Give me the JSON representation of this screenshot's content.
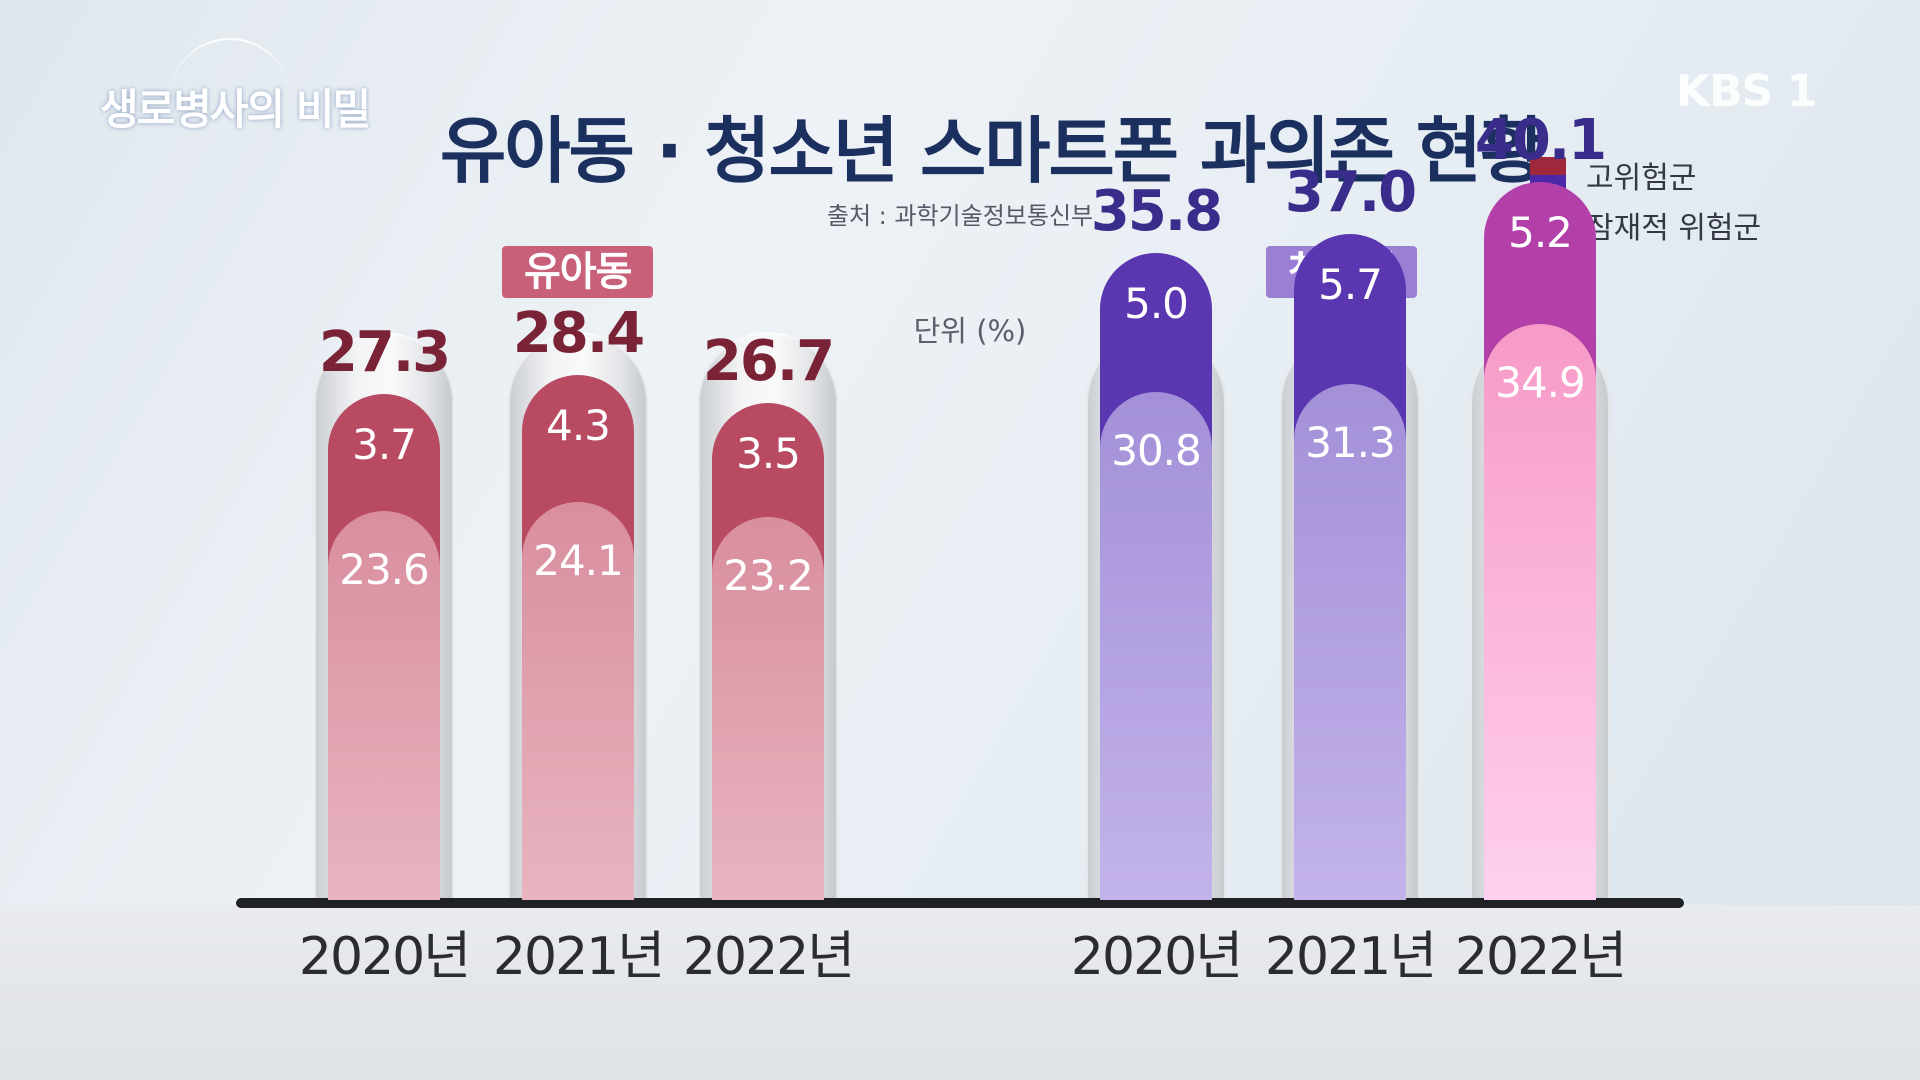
{
  "branding": {
    "program": "생로병사의 비밀",
    "channel": "KBS 1"
  },
  "chart_data": {
    "type": "bar",
    "stacked": true,
    "title": "유아동 · 청소년 스마트폰 과의존 현황",
    "source": "출처 : 과학기술정보통신부",
    "unit": "단위 (%)",
    "legend": [
      {
        "label": "고위험군",
        "colors": [
          "#a0283c",
          "#4a28a8"
        ]
      },
      {
        "label": "잠재적 위험군",
        "colors": [
          "#e89aa8",
          "#a99be0"
        ]
      }
    ],
    "legend_position": "top-right",
    "ylim": [
      0,
      50
    ],
    "groups": [
      {
        "name": "유아동",
        "label_color": "#c8607a",
        "high_color": "#b84a62",
        "low_color_top": "#d98e9e",
        "low_color_bottom": "#e8b4c0",
        "total_color": "#7a2236",
        "categories": [
          "2020년",
          "2021년",
          "2022년"
        ],
        "total": [
          "27.3",
          "28.4",
          "26.7"
        ],
        "high_risk": [
          "3.7",
          "4.3",
          "3.5"
        ],
        "potential_risk": [
          "23.6",
          "24.1",
          "23.2"
        ]
      },
      {
        "name": "청소년",
        "label_color": "#9a7fd4",
        "high_color": "#5a36b0",
        "low_color_top": "#a390d8",
        "low_color_bottom": "#c3b3ea",
        "total_color": "#3a2c8a",
        "categories": [
          "2020년",
          "2021년",
          "2022년"
        ],
        "total": [
          "35.8",
          "37.0",
          "40.1"
        ],
        "high_risk": [
          "5.0",
          "5.7",
          "5.2"
        ],
        "potential_risk": [
          "30.8",
          "31.3",
          "34.9"
        ]
      }
    ],
    "highlight": {
      "group": 1,
      "index": 2,
      "high_color": "#b240a8",
      "low_color_top": "#f79ac8",
      "low_color_bottom": "#ffd0ef"
    }
  }
}
